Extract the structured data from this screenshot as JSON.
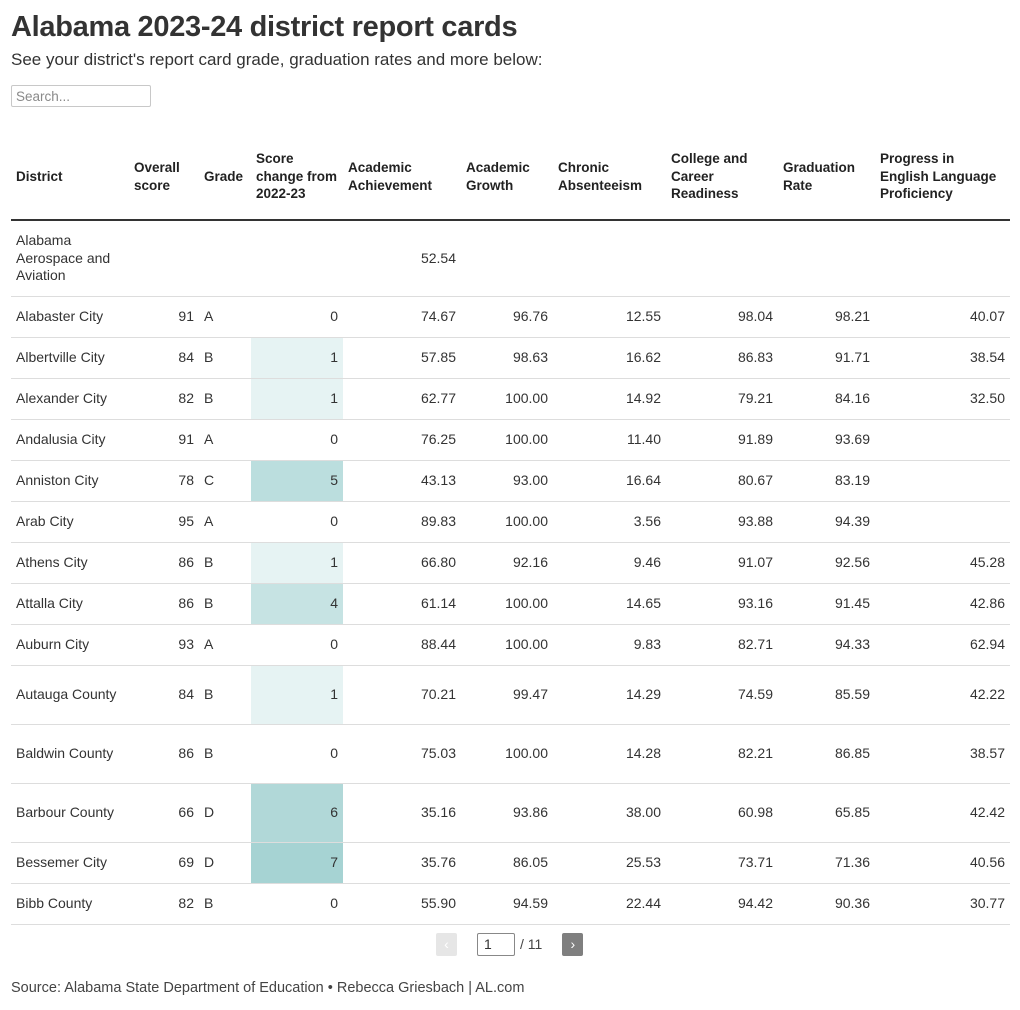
{
  "title": "Alabama 2023-24 district report cards",
  "subtitle": "See your district's report card grade, graduation rates and more below:",
  "search": {
    "placeholder": "Search..."
  },
  "table": {
    "headers": [
      "District",
      "Overall score",
      "Grade",
      "Score change from 2022-23",
      "Academic Achievement",
      "Academic Growth",
      "Chronic Absenteeism",
      "College and Career Readiness",
      "Graduation Rate",
      "Progress in English Language Proficiency"
    ],
    "rows": [
      [
        "Alabama Aerospace and Aviation",
        "",
        "",
        "",
        "52.54",
        "",
        "",
        "",
        "",
        ""
      ],
      [
        "Alabaster City",
        "91",
        "A",
        "0",
        "74.67",
        "96.76",
        "12.55",
        "98.04",
        "98.21",
        "40.07"
      ],
      [
        "Albertville City",
        "84",
        "B",
        "1",
        "57.85",
        "98.63",
        "16.62",
        "86.83",
        "91.71",
        "38.54"
      ],
      [
        "Alexander City",
        "82",
        "B",
        "1",
        "62.77",
        "100.00",
        "14.92",
        "79.21",
        "84.16",
        "32.50"
      ],
      [
        "Andalusia City",
        "91",
        "A",
        "0",
        "76.25",
        "100.00",
        "11.40",
        "91.89",
        "93.69",
        ""
      ],
      [
        "Anniston City",
        "78",
        "C",
        "5",
        "43.13",
        "93.00",
        "16.64",
        "80.67",
        "83.19",
        ""
      ],
      [
        "Arab City",
        "95",
        "A",
        "0",
        "89.83",
        "100.00",
        "3.56",
        "93.88",
        "94.39",
        ""
      ],
      [
        "Athens City",
        "86",
        "B",
        "1",
        "66.80",
        "92.16",
        "9.46",
        "91.07",
        "92.56",
        "45.28"
      ],
      [
        "Attalla City",
        "86",
        "B",
        "4",
        "61.14",
        "100.00",
        "14.65",
        "93.16",
        "91.45",
        "42.86"
      ],
      [
        "Auburn City",
        "93",
        "A",
        "0",
        "88.44",
        "100.00",
        "9.83",
        "82.71",
        "94.33",
        "62.94"
      ],
      [
        "Autauga County",
        "84",
        "B",
        "1",
        "70.21",
        "99.47",
        "14.29",
        "74.59",
        "85.59",
        "42.22"
      ],
      [
        "Baldwin County",
        "86",
        "B",
        "0",
        "75.03",
        "100.00",
        "14.28",
        "82.21",
        "86.85",
        "38.57"
      ],
      [
        "Barbour County",
        "66",
        "D",
        "6",
        "35.16",
        "93.86",
        "38.00",
        "60.98",
        "65.85",
        "42.42"
      ],
      [
        "Bessemer City",
        "69",
        "D",
        "7",
        "35.76",
        "86.05",
        "25.53",
        "73.71",
        "71.36",
        "40.56"
      ],
      [
        "Bibb County",
        "82",
        "B",
        "0",
        "55.90",
        "94.59",
        "22.44",
        "94.42",
        "90.36",
        "30.77"
      ]
    ]
  },
  "pagination": {
    "prev_label": "‹",
    "current_page": "1",
    "total_label": "/ 11",
    "next_label": "›"
  },
  "source": "Source: Alabama State Department of Education • Rebecca Griesbach | AL.com",
  "colors": {
    "text": "#333333",
    "heat_high": "#a6d3d3",
    "heat_low": "#f1f8f8",
    "divider": "#dddddd"
  }
}
